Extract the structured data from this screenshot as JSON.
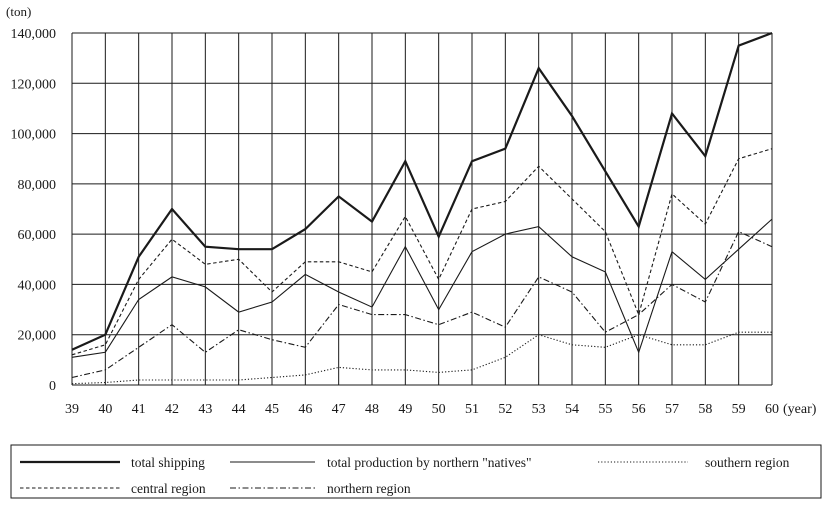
{
  "chart_data": {
    "type": "line",
    "title": "",
    "ylabel": "(ton)",
    "xlabel": "(year)",
    "ylim": [
      0,
      140000
    ],
    "yticks": [
      0,
      20000,
      40000,
      60000,
      80000,
      100000,
      120000,
      140000
    ],
    "ytick_labels": [
      "0",
      "20,000",
      "40,000",
      "60,000",
      "80,000",
      "100,000",
      "120,000",
      "140,000"
    ],
    "grid": true,
    "legend_position": "bottom",
    "x": [
      "39",
      "40",
      "41",
      "42",
      "43",
      "44",
      "45",
      "46",
      "47",
      "48",
      "49",
      "50",
      "51",
      "52",
      "53",
      "54",
      "55",
      "56",
      "57",
      "58",
      "59",
      "60"
    ],
    "series": [
      {
        "name": "total shipping",
        "style": "thick-solid",
        "values": [
          14000,
          20000,
          51000,
          70000,
          55000,
          54000,
          54000,
          62000,
          75000,
          65000,
          89000,
          59000,
          89000,
          94000,
          126000,
          107000,
          85000,
          63000,
          108000,
          91000,
          135000,
          140000
        ]
      },
      {
        "name": "total production by northern \"natives\"",
        "style": "thin-solid",
        "values": [
          11000,
          13000,
          34000,
          43000,
          39000,
          29000,
          33000,
          44000,
          37000,
          31000,
          55000,
          30000,
          53000,
          60000,
          63000,
          51000,
          45000,
          13000,
          53000,
          42000,
          54000,
          66000
        ]
      },
      {
        "name": "southern region",
        "style": "dotted",
        "values": [
          500,
          1000,
          2000,
          2000,
          2000,
          2000,
          3000,
          4000,
          7000,
          6000,
          6000,
          5000,
          6000,
          11000,
          20000,
          16000,
          15000,
          20000,
          16000,
          16000,
          21000,
          21000
        ]
      },
      {
        "name": "central region",
        "style": "dashed",
        "values": [
          12000,
          16000,
          42000,
          58000,
          48000,
          50000,
          37000,
          49000,
          49000,
          45000,
          67000,
          42000,
          70000,
          73000,
          87000,
          74000,
          61000,
          28000,
          76000,
          64000,
          90000,
          94000
        ]
      },
      {
        "name": "northern region",
        "style": "dash-dot",
        "values": [
          3000,
          6000,
          15000,
          24000,
          13000,
          22000,
          18000,
          15000,
          32000,
          28000,
          28000,
          24000,
          29000,
          23000,
          43000,
          37000,
          21000,
          28000,
          40000,
          33000,
          61000,
          55000
        ]
      }
    ]
  }
}
